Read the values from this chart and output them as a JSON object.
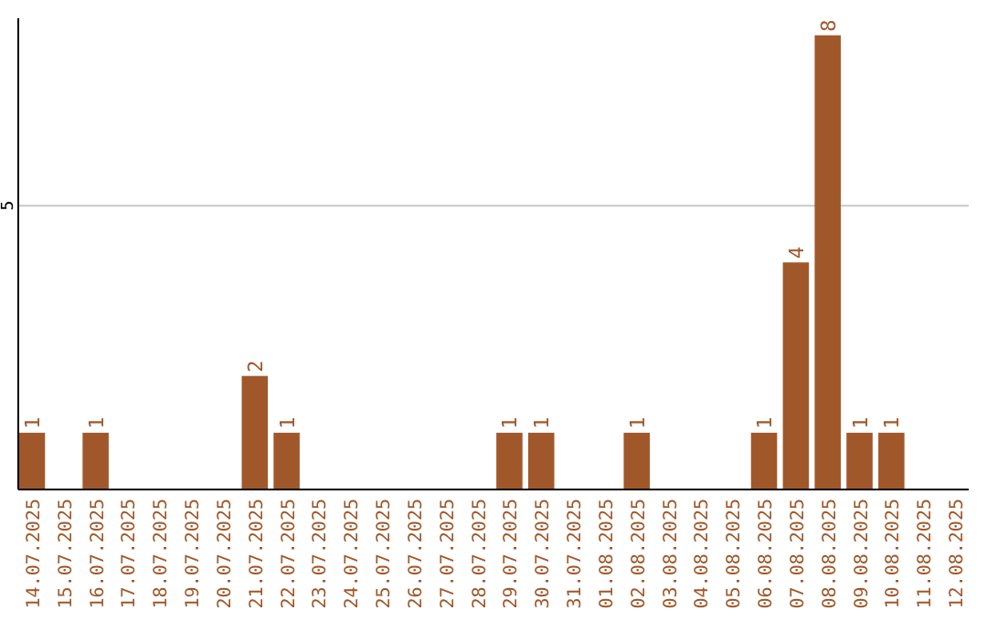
{
  "chart_data": {
    "type": "bar",
    "categories": [
      "14.07.2025",
      "15.07.2025",
      "16.07.2025",
      "17.07.2025",
      "18.07.2025",
      "19.07.2025",
      "20.07.2025",
      "21.07.2025",
      "22.07.2025",
      "23.07.2025",
      "24.07.2025",
      "25.07.2025",
      "26.07.2025",
      "27.07.2025",
      "28.07.2025",
      "29.07.2025",
      "30.07.2025",
      "31.07.2025",
      "01.08.2025",
      "02.08.2025",
      "03.08.2025",
      "04.08.2025",
      "05.08.2025",
      "06.08.2025",
      "07.08.2025",
      "08.08.2025",
      "09.08.2025",
      "10.08.2025",
      "11.08.2025",
      "12.08.2025"
    ],
    "values": [
      1,
      0,
      1,
      0,
      0,
      0,
      0,
      2,
      1,
      0,
      0,
      0,
      0,
      0,
      0,
      1,
      1,
      0,
      0,
      1,
      0,
      0,
      0,
      1,
      4,
      8,
      1,
      1,
      0,
      0
    ],
    "value_labels": [
      "1",
      null,
      "1",
      null,
      null,
      null,
      null,
      "2",
      "1",
      null,
      null,
      null,
      null,
      null,
      null,
      "1",
      "1",
      null,
      null,
      "1",
      null,
      null,
      null,
      "1",
      "4",
      "8",
      "1",
      "1",
      null,
      null
    ],
    "color": "#a0582a",
    "ylim": [
      0,
      8.3
    ],
    "yticks": [
      5
    ],
    "grid": "y"
  }
}
